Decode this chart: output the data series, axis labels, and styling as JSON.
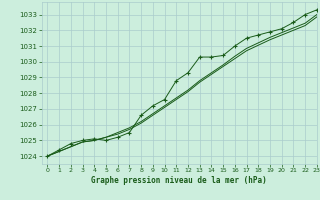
{
  "title": "Graphe pression niveau de la mer (hPa)",
  "background_color": "#cceedd",
  "grid_color": "#aacccc",
  "line_color": "#1a5c1a",
  "marker_color": "#1a5c1a",
  "xlim": [
    -0.5,
    23
  ],
  "ylim": [
    1023.5,
    1033.8
  ],
  "yticks": [
    1024,
    1025,
    1026,
    1027,
    1028,
    1029,
    1030,
    1031,
    1032,
    1033
  ],
  "xticks": [
    0,
    1,
    2,
    3,
    4,
    5,
    6,
    7,
    8,
    9,
    10,
    11,
    12,
    13,
    14,
    15,
    16,
    17,
    18,
    19,
    20,
    21,
    22,
    23
  ],
  "hours": [
    0,
    1,
    2,
    3,
    4,
    5,
    6,
    7,
    8,
    9,
    10,
    11,
    12,
    13,
    14,
    15,
    16,
    17,
    18,
    19,
    20,
    21,
    22,
    23
  ],
  "series1": [
    1024.0,
    1024.4,
    1024.8,
    1025.0,
    1025.1,
    1025.0,
    1025.2,
    1025.5,
    1026.6,
    1027.2,
    1027.6,
    1028.8,
    1029.3,
    1030.3,
    1030.3,
    1030.4,
    1031.0,
    1031.5,
    1031.7,
    1031.9,
    1032.1,
    1032.5,
    1033.0,
    1033.3
  ],
  "series2": [
    1024.0,
    1024.3,
    1024.6,
    1024.9,
    1025.0,
    1025.2,
    1025.5,
    1025.8,
    1026.2,
    1026.7,
    1027.2,
    1027.7,
    1028.2,
    1028.8,
    1029.3,
    1029.8,
    1030.35,
    1030.85,
    1031.2,
    1031.55,
    1031.85,
    1032.15,
    1032.45,
    1033.0
  ],
  "series3": [
    1024.0,
    1024.3,
    1024.6,
    1024.9,
    1025.0,
    1025.2,
    1025.4,
    1025.7,
    1026.1,
    1026.6,
    1027.1,
    1027.6,
    1028.1,
    1028.7,
    1029.2,
    1029.7,
    1030.2,
    1030.7,
    1031.05,
    1031.4,
    1031.7,
    1032.0,
    1032.3,
    1032.85
  ]
}
